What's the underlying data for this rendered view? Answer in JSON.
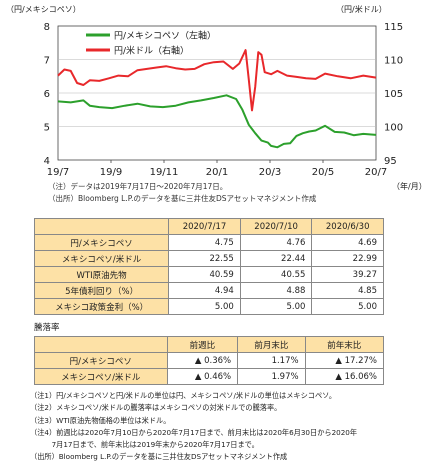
{
  "chart_data": {
    "type": "line",
    "title": "",
    "left_unit": "（円/メキシコペソ）",
    "right_unit": "（円/米ドル）",
    "xlabel": "（年/月）",
    "ylim_left": [
      4,
      8
    ],
    "ylim_right": [
      95,
      115
    ],
    "yticks_left": [
      "4",
      "5",
      "6",
      "7",
      "8"
    ],
    "yticks_right": [
      "95",
      "100",
      "105",
      "110",
      "115"
    ],
    "x_categories": [
      "19/7",
      "19/9",
      "19/11",
      "20/1",
      "20/3",
      "20/5",
      "20/7"
    ],
    "legend": [
      "円/メキシコペソ（左軸）",
      "円/米ドル（右軸）"
    ],
    "grid": true,
    "series": [
      {
        "name": "円/メキシコペソ（左軸）",
        "color": "#2ca02c",
        "axis": "left",
        "x": [
          0,
          0.04,
          0.08,
          0.1,
          0.13,
          0.17,
          0.21,
          0.25,
          0.29,
          0.33,
          0.37,
          0.41,
          0.45,
          0.49,
          0.53,
          0.56,
          0.58,
          0.6,
          0.62,
          0.64,
          0.66,
          0.67,
          0.69,
          0.71,
          0.73,
          0.75,
          0.77,
          0.79,
          0.81,
          0.84,
          0.87,
          0.9,
          0.93,
          0.96,
          1.0
        ],
        "y": [
          5.75,
          5.72,
          5.78,
          5.62,
          5.58,
          5.55,
          5.62,
          5.68,
          5.6,
          5.58,
          5.62,
          5.72,
          5.78,
          5.85,
          5.93,
          5.82,
          5.5,
          5.05,
          4.8,
          4.58,
          4.52,
          4.42,
          4.38,
          4.48,
          4.5,
          4.72,
          4.8,
          4.85,
          4.88,
          5.02,
          4.84,
          4.82,
          4.74,
          4.78,
          4.75
        ]
      },
      {
        "name": "円/米ドル（右軸）",
        "color": "#e8282b",
        "axis": "right",
        "x": [
          0,
          0.02,
          0.04,
          0.06,
          0.08,
          0.1,
          0.13,
          0.16,
          0.19,
          0.22,
          0.25,
          0.28,
          0.31,
          0.34,
          0.37,
          0.4,
          0.43,
          0.46,
          0.49,
          0.52,
          0.55,
          0.57,
          0.59,
          0.6,
          0.61,
          0.62,
          0.63,
          0.64,
          0.65,
          0.67,
          0.69,
          0.72,
          0.75,
          0.78,
          0.81,
          0.84,
          0.88,
          0.92,
          0.96,
          1.0
        ],
        "y": [
          107.6,
          108.5,
          108.3,
          106.5,
          106.2,
          106.9,
          106.8,
          107.2,
          107.6,
          107.5,
          108.4,
          108.6,
          108.8,
          109.0,
          108.7,
          108.5,
          108.6,
          109.3,
          109.6,
          109.7,
          108.6,
          109.4,
          111.4,
          107.0,
          102.4,
          105.9,
          111.1,
          110.7,
          108.1,
          107.8,
          108.3,
          107.6,
          107.4,
          107.2,
          107.1,
          107.9,
          107.5,
          107.2,
          107.6,
          107.3
        ]
      }
    ]
  },
  "notes_chart": [
    "（注）データは2019年7月17日～2020年7月17日。",
    "（出所）Bloomberg L.P.のデータを基に三井住友DSアセットマネジメント作成"
  ],
  "table1": {
    "headers": [
      "",
      "2020/7/17",
      "2020/7/10",
      "2020/6/30"
    ],
    "rows": [
      {
        "label": "円/メキシコペソ",
        "values": [
          "4.75",
          "4.76",
          "4.69"
        ]
      },
      {
        "label": "メキシコペソ/米ドル",
        "values": [
          "22.55",
          "22.44",
          "22.99"
        ]
      },
      {
        "label": "WTI原油先物",
        "values": [
          "40.59",
          "40.55",
          "39.27"
        ]
      },
      {
        "label": "5年債利回り（%）",
        "values": [
          "4.94",
          "4.88",
          "4.85"
        ]
      },
      {
        "label": "メキシコ政策金利（%）",
        "values": [
          "5.00",
          "5.00",
          "5.00"
        ]
      }
    ]
  },
  "rate_title": "騰落率",
  "table2": {
    "headers": [
      "",
      "前週比",
      "前月末比",
      "前年末比"
    ],
    "rows": [
      {
        "label": "円/メキシコペソ",
        "values": [
          "▲ 0.36%",
          "1.17%",
          "▲ 17.27%"
        ]
      },
      {
        "label": "メキシコペソ/米ドル",
        "values": [
          "▲ 0.46%",
          "1.97%",
          "▲ 16.06%"
        ]
      }
    ]
  },
  "notes": [
    "（注1）円/メキシコペソと円/米ドルの単位は円、メキシコペソ/米ドルの単位はメキシコペソ。",
    "（注2）メキシコペソ/米ドルの騰落率はメキシコペソの対米ドルでの騰落率。",
    "（注3）WTI原油先物価格の単位は米ドル。",
    "（注4）前週比は2020年7月10日から2020年7月17日まで、前月末比は2020年6月30日から2020年",
    "　　　7月17日まで、前年末比は2019年末から2020年7月17日まで。",
    "（出所）Bloomberg L.P.のデータを基に三井住友DSアセットマネジメント作成"
  ]
}
